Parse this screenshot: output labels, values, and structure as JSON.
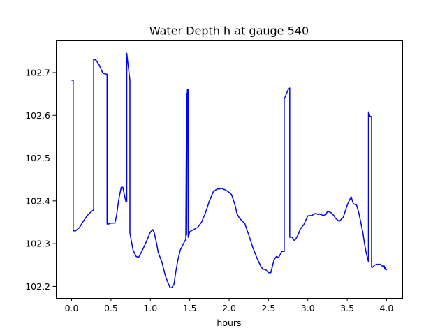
{
  "chart_data": {
    "type": "line",
    "title": "Water Depth h at gauge 540",
    "xlabel": "hours",
    "ylabel": "",
    "xlim": [
      -0.2,
      4.2
    ],
    "ylim": [
      102.173,
      102.775
    ],
    "xticks": [
      0.0,
      0.5,
      1.0,
      1.5,
      2.0,
      2.5,
      3.0,
      3.5,
      4.0
    ],
    "xtick_labels": [
      "0.0",
      "0.5",
      "1.0",
      "1.5",
      "2.0",
      "2.5",
      "3.0",
      "3.5",
      "4.0"
    ],
    "yticks": [
      102.2,
      102.3,
      102.4,
      102.5,
      102.6,
      102.7
    ],
    "ytick_labels": [
      "102.2",
      "102.3",
      "102.4",
      "102.5",
      "102.6",
      "102.7"
    ],
    "grid": false,
    "line_color": "#0000ff",
    "series": [
      {
        "x": [
          0.0,
          0.02,
          0.02,
          0.05,
          0.1,
          0.15,
          0.2,
          0.25,
          0.27,
          0.28,
          0.28,
          0.31,
          0.35,
          0.38,
          0.4,
          0.45,
          0.45,
          0.47,
          0.5,
          0.55,
          0.57,
          0.6,
          0.63,
          0.65,
          0.67,
          0.69,
          0.7,
          0.7,
          0.74,
          0.74,
          0.75,
          0.78,
          0.82,
          0.85,
          0.9,
          0.95,
          1.0,
          1.03,
          1.05,
          1.08,
          1.1,
          1.13,
          1.15,
          1.18,
          1.2,
          1.25,
          1.27,
          1.3,
          1.32,
          1.35,
          1.38,
          1.42,
          1.45,
          1.46,
          1.46,
          1.47,
          1.48,
          1.48,
          1.49,
          1.5,
          1.55,
          1.6,
          1.65,
          1.7,
          1.75,
          1.8,
          1.85,
          1.88,
          1.9,
          1.92,
          1.95,
          2.0,
          2.03,
          2.05,
          2.08,
          2.1,
          2.13,
          2.15,
          2.2,
          2.25,
          2.3,
          2.35,
          2.4,
          2.43,
          2.46,
          2.5,
          2.53,
          2.57,
          2.6,
          2.63,
          2.67,
          2.7,
          2.7,
          2.75,
          2.77,
          2.77,
          2.8,
          2.83,
          2.85,
          2.88,
          2.9,
          2.95,
          3.0,
          3.05,
          3.1,
          3.13,
          3.15,
          3.2,
          3.23,
          3.25,
          3.3,
          3.33,
          3.35,
          3.4,
          3.45,
          3.5,
          3.55,
          3.57,
          3.58,
          3.62,
          3.65,
          3.7,
          3.72,
          3.74,
          3.76,
          3.77,
          3.77,
          3.79,
          3.81,
          3.81,
          3.82,
          3.85,
          3.88,
          3.92,
          3.95,
          3.97,
          3.98,
          3.98,
          4.0
        ],
        "y": [
          102.682,
          102.682,
          102.33,
          102.33,
          102.338,
          102.353,
          102.366,
          102.375,
          102.378,
          102.378,
          102.731,
          102.729,
          102.718,
          102.705,
          102.698,
          102.696,
          102.346,
          102.346,
          102.348,
          102.348,
          102.365,
          102.405,
          102.432,
          102.432,
          102.415,
          102.398,
          102.398,
          102.745,
          102.682,
          102.325,
          102.315,
          102.285,
          102.27,
          102.268,
          102.285,
          102.305,
          102.327,
          102.333,
          102.325,
          102.3,
          102.28,
          102.265,
          102.255,
          102.232,
          102.22,
          102.197,
          102.197,
          102.205,
          102.23,
          102.262,
          102.285,
          102.3,
          102.31,
          102.652,
          102.32,
          102.66,
          102.66,
          102.315,
          102.32,
          102.328,
          102.333,
          102.338,
          102.35,
          102.372,
          102.4,
          102.422,
          102.428,
          102.428,
          102.43,
          102.428,
          102.426,
          102.42,
          102.415,
          102.405,
          102.387,
          102.37,
          102.36,
          102.356,
          102.347,
          102.32,
          102.292,
          102.268,
          102.248,
          102.24,
          102.24,
          102.232,
          102.232,
          102.262,
          102.27,
          102.268,
          102.282,
          102.282,
          102.638,
          102.66,
          102.664,
          102.315,
          102.315,
          102.307,
          102.312,
          102.322,
          102.333,
          102.345,
          102.365,
          102.366,
          102.371,
          102.368,
          102.369,
          102.366,
          102.368,
          102.376,
          102.372,
          102.366,
          102.36,
          102.352,
          102.362,
          102.39,
          102.41,
          102.398,
          102.393,
          102.39,
          102.37,
          102.325,
          102.3,
          102.28,
          102.265,
          102.258,
          102.608,
          102.598,
          102.597,
          102.245,
          102.245,
          102.25,
          102.252,
          102.252,
          102.247,
          102.248,
          102.24,
          102.245,
          102.238
        ]
      }
    ]
  }
}
